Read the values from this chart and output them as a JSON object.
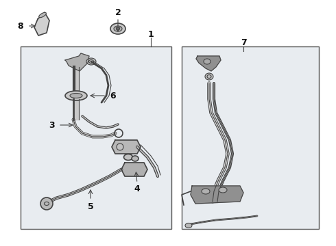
{
  "bg_color": "#ffffff",
  "box_bg": "#e8ecf0",
  "line_color": "#444444",
  "dark_color": "#222222",
  "box_edge_color": "#555555",
  "label_color": "#111111",
  "part_fill": "#cccccc",
  "part_edge": "#444444"
}
